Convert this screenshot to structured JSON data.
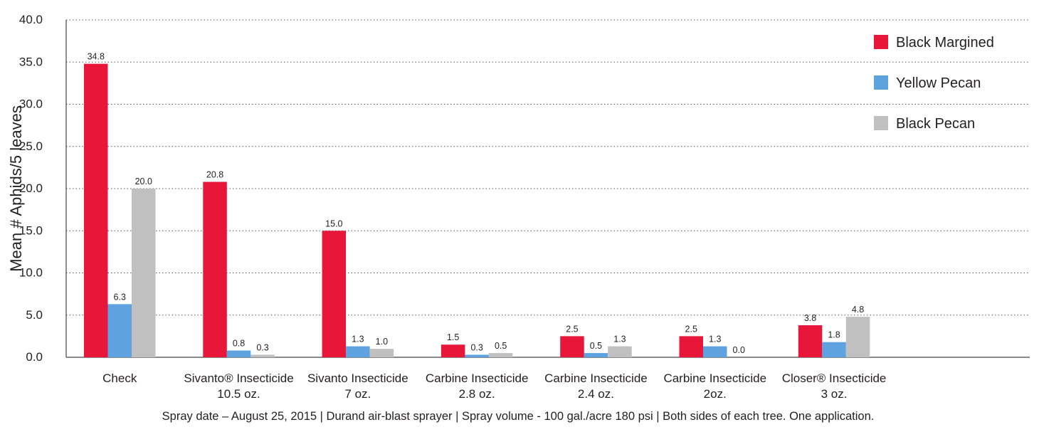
{
  "chart_data": {
    "type": "bar",
    "title": "",
    "xlabel": "",
    "ylabel": "Mean # Aphids/5 leaves",
    "ylim": [
      0,
      40
    ],
    "yticks": [
      "0.0",
      "5.0",
      "10.0",
      "15.0",
      "20.0",
      "25.0",
      "30.0",
      "35.0",
      "40.0"
    ],
    "grid": "horizontal dotted",
    "legend_position": "top-right",
    "categories": [
      [
        "Check"
      ],
      [
        "Sivanto® Insecticide",
        "10.5 oz."
      ],
      [
        "Sivanto Insecticide",
        "7 oz."
      ],
      [
        "Carbine Insecticide",
        "2.8 oz."
      ],
      [
        "Carbine Insecticide",
        "2.4 oz."
      ],
      [
        "Carbine Insecticide",
        "2oz."
      ],
      [
        "Closer® Insecticide",
        "3 oz."
      ]
    ],
    "series": [
      {
        "name": "Black Margined",
        "color": "#e8173a",
        "values": [
          34.8,
          20.8,
          15.0,
          1.5,
          2.5,
          2.5,
          3.8
        ],
        "labels": [
          "34.8",
          "20.8",
          "15.0",
          "1.5",
          "2.5",
          "2.5",
          "3.8"
        ]
      },
      {
        "name": "Yellow Pecan",
        "color": "#5ea2df",
        "values": [
          6.3,
          0.8,
          1.3,
          0.3,
          0.5,
          1.3,
          1.8
        ],
        "labels": [
          "6.3",
          "0.8",
          "1.3",
          "0.3",
          "0.5",
          "1.3",
          "1.8"
        ]
      },
      {
        "name": "Black Pecan",
        "color": "#c0c0c1",
        "values": [
          20.0,
          0.3,
          1.0,
          0.5,
          1.3,
          0.0,
          4.8
        ],
        "labels": [
          "20.0",
          "0.3",
          "1.0",
          "0.5",
          "1.3",
          "0.0",
          "4.8"
        ]
      }
    ],
    "footnote": "Spray date – August 25, 2015 | Durand air-blast sprayer | Spray volume - 100 gal./acre 180 psi | Both sides of each tree. One application."
  }
}
